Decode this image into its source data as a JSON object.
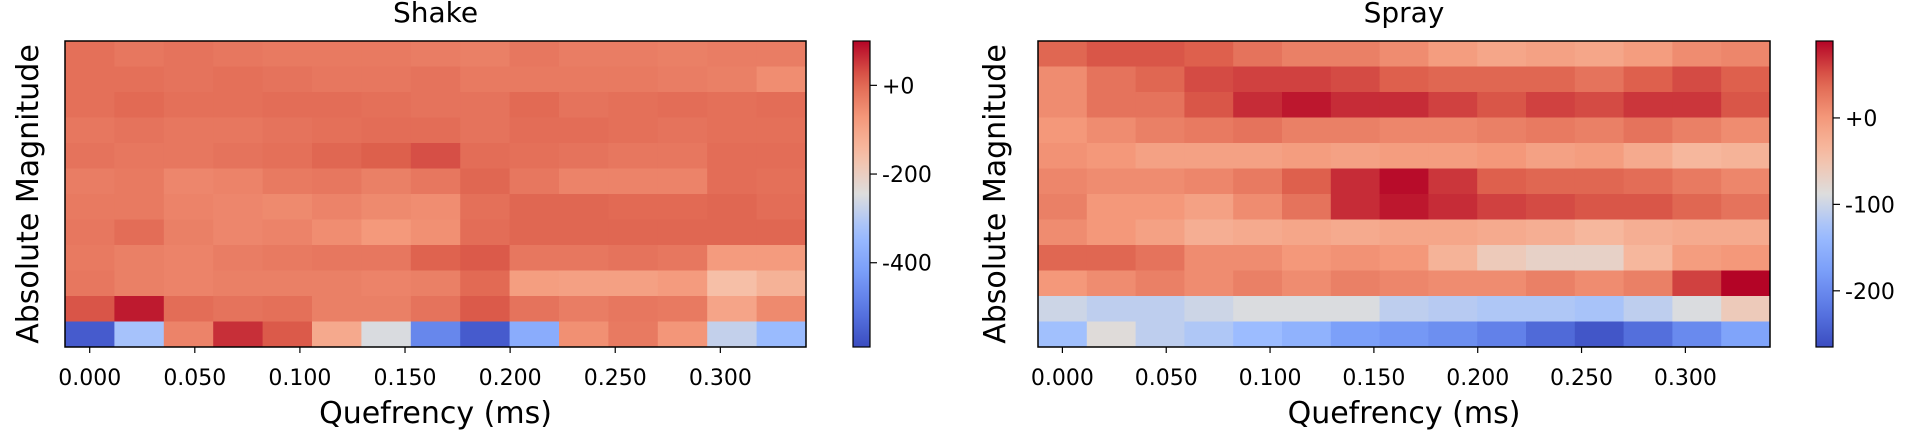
{
  "chart_data": [
    {
      "type": "heatmap",
      "title": "Shake",
      "xlabel": "Quefrency (ms)",
      "ylabel": "Absolute Magnitude",
      "colormap": "coolwarm",
      "x": [
        0,
        0.0235,
        0.047,
        0.0705,
        0.094,
        0.1175,
        0.141,
        0.1645,
        0.188,
        0.2115,
        0.235,
        0.2585,
        0.282,
        0.3055,
        0.329
      ],
      "xlim": [
        -0.01175,
        0.34075
      ],
      "xticks": [
        {
          "value": 0,
          "label": "0.000"
        },
        {
          "value": 0.05,
          "label": "0.050"
        },
        {
          "value": 0.1,
          "label": "0.100"
        },
        {
          "value": 0.15,
          "label": "0.150"
        },
        {
          "value": 0.2,
          "label": "0.200"
        },
        {
          "value": 0.25,
          "label": "0.250"
        },
        {
          "value": 0.3,
          "label": "0.300"
        }
      ],
      "z": [
        [
          -10,
          -20,
          -15,
          -20,
          -25,
          -25,
          -25,
          -30,
          -35,
          -20,
          -30,
          -30,
          -35,
          -30,
          -30
        ],
        [
          -10,
          -10,
          -15,
          -10,
          -15,
          -20,
          -20,
          -15,
          -25,
          -25,
          -25,
          -25,
          -30,
          -35,
          -55
        ],
        [
          -10,
          0,
          -10,
          -10,
          -5,
          -5,
          -10,
          -15,
          -15,
          0,
          -15,
          -10,
          -5,
          -10,
          -5
        ],
        [
          -20,
          -15,
          -20,
          -20,
          -15,
          -10,
          -5,
          -5,
          -15,
          -5,
          -5,
          -10,
          -15,
          -10,
          -10
        ],
        [
          -15,
          -20,
          -20,
          -15,
          -10,
          5,
          15,
          30,
          -5,
          -10,
          -15,
          -20,
          -20,
          -5,
          -5
        ],
        [
          -30,
          -25,
          -45,
          -40,
          -25,
          -20,
          -35,
          -20,
          5,
          -20,
          -40,
          -40,
          -40,
          -5,
          -10
        ],
        [
          -25,
          -25,
          -40,
          -45,
          -50,
          -40,
          -50,
          -55,
          -10,
          5,
          5,
          0,
          0,
          5,
          -5
        ],
        [
          -20,
          -5,
          -35,
          -45,
          -40,
          -55,
          -75,
          -60,
          -5,
          5,
          5,
          5,
          5,
          5,
          5
        ],
        [
          -25,
          -35,
          -40,
          -30,
          -25,
          -20,
          -20,
          10,
          20,
          -20,
          -20,
          -15,
          -20,
          -80,
          -80
        ],
        [
          -20,
          -35,
          -40,
          -35,
          -35,
          -35,
          -40,
          -35,
          0,
          -85,
          -90,
          -90,
          -80,
          -160,
          -130
        ],
        [
          25,
          80,
          -5,
          -15,
          -10,
          -35,
          -35,
          -15,
          20,
          -15,
          -30,
          -20,
          -25,
          -100,
          -50
        ],
        [
          -560,
          -320,
          -40,
          60,
          20,
          -110,
          -250,
          -470,
          -560,
          -380,
          -60,
          -25,
          -70,
          -280,
          -340
        ]
      ],
      "clim": [
        -590,
        100
      ],
      "cticks": [
        {
          "value": 0,
          "label": "+0"
        },
        -200,
        -400
      ]
    },
    {
      "type": "heatmap",
      "title": "Spray",
      "xlabel": "Quefrency (ms)",
      "ylabel": "Absolute Magnitude",
      "colormap": "coolwarm",
      "x": [
        0,
        0.0235,
        0.047,
        0.0705,
        0.094,
        0.1175,
        0.141,
        0.1645,
        0.188,
        0.2115,
        0.235,
        0.2585,
        0.282,
        0.3055,
        0.329
      ],
      "xlim": [
        -0.01175,
        0.34075
      ],
      "xticks": [
        {
          "value": 0,
          "label": "0.000"
        },
        {
          "value": 0.05,
          "label": "0.050"
        },
        {
          "value": 0.1,
          "label": "0.100"
        },
        {
          "value": 0.15,
          "label": "0.150"
        },
        {
          "value": 0.2,
          "label": "0.200"
        },
        {
          "value": 0.25,
          "label": "0.250"
        },
        {
          "value": 0.3,
          "label": "0.300"
        }
      ],
      "z": [
        [
          40,
          50,
          50,
          45,
          30,
          20,
          20,
          10,
          -5,
          -15,
          -10,
          -15,
          -5,
          10,
          15
        ],
        [
          10,
          30,
          40,
          55,
          60,
          60,
          55,
          45,
          40,
          40,
          40,
          30,
          45,
          55,
          45
        ],
        [
          10,
          30,
          30,
          50,
          70,
          80,
          70,
          70,
          60,
          50,
          60,
          55,
          65,
          65,
          50
        ],
        [
          0,
          10,
          20,
          25,
          30,
          20,
          20,
          15,
          15,
          20,
          25,
          20,
          30,
          20,
          10
        ],
        [
          5,
          0,
          -10,
          -10,
          -10,
          -5,
          -10,
          -5,
          -5,
          0,
          -10,
          -5,
          -20,
          -35,
          -30
        ],
        [
          15,
          10,
          10,
          15,
          25,
          45,
          70,
          85,
          65,
          45,
          40,
          40,
          35,
          25,
          15
        ],
        [
          20,
          0,
          0,
          -10,
          10,
          30,
          70,
          80,
          70,
          60,
          55,
          50,
          50,
          40,
          30
        ],
        [
          10,
          0,
          -10,
          -25,
          -20,
          -15,
          -20,
          -15,
          -15,
          -20,
          -25,
          -35,
          -25,
          -20,
          -20
        ],
        [
          40,
          40,
          30,
          10,
          10,
          0,
          5,
          0,
          -30,
          -60,
          -70,
          -70,
          -35,
          -5,
          0
        ],
        [
          0,
          10,
          20,
          10,
          20,
          10,
          20,
          15,
          10,
          10,
          20,
          10,
          20,
          60,
          90
        ],
        [
          -100,
          -110,
          -110,
          -100,
          -90,
          -90,
          -90,
          -110,
          -115,
          -120,
          -120,
          -125,
          -110,
          -90,
          -60
        ],
        [
          -130,
          -85,
          -110,
          -120,
          -135,
          -150,
          -175,
          -185,
          -195,
          -210,
          -235,
          -255,
          -230,
          -200,
          -170
        ]
      ],
      "clim": [
        -265,
        89
      ],
      "cticks": [
        {
          "value": 0,
          "label": "+0"
        },
        -100,
        -200
      ]
    }
  ]
}
